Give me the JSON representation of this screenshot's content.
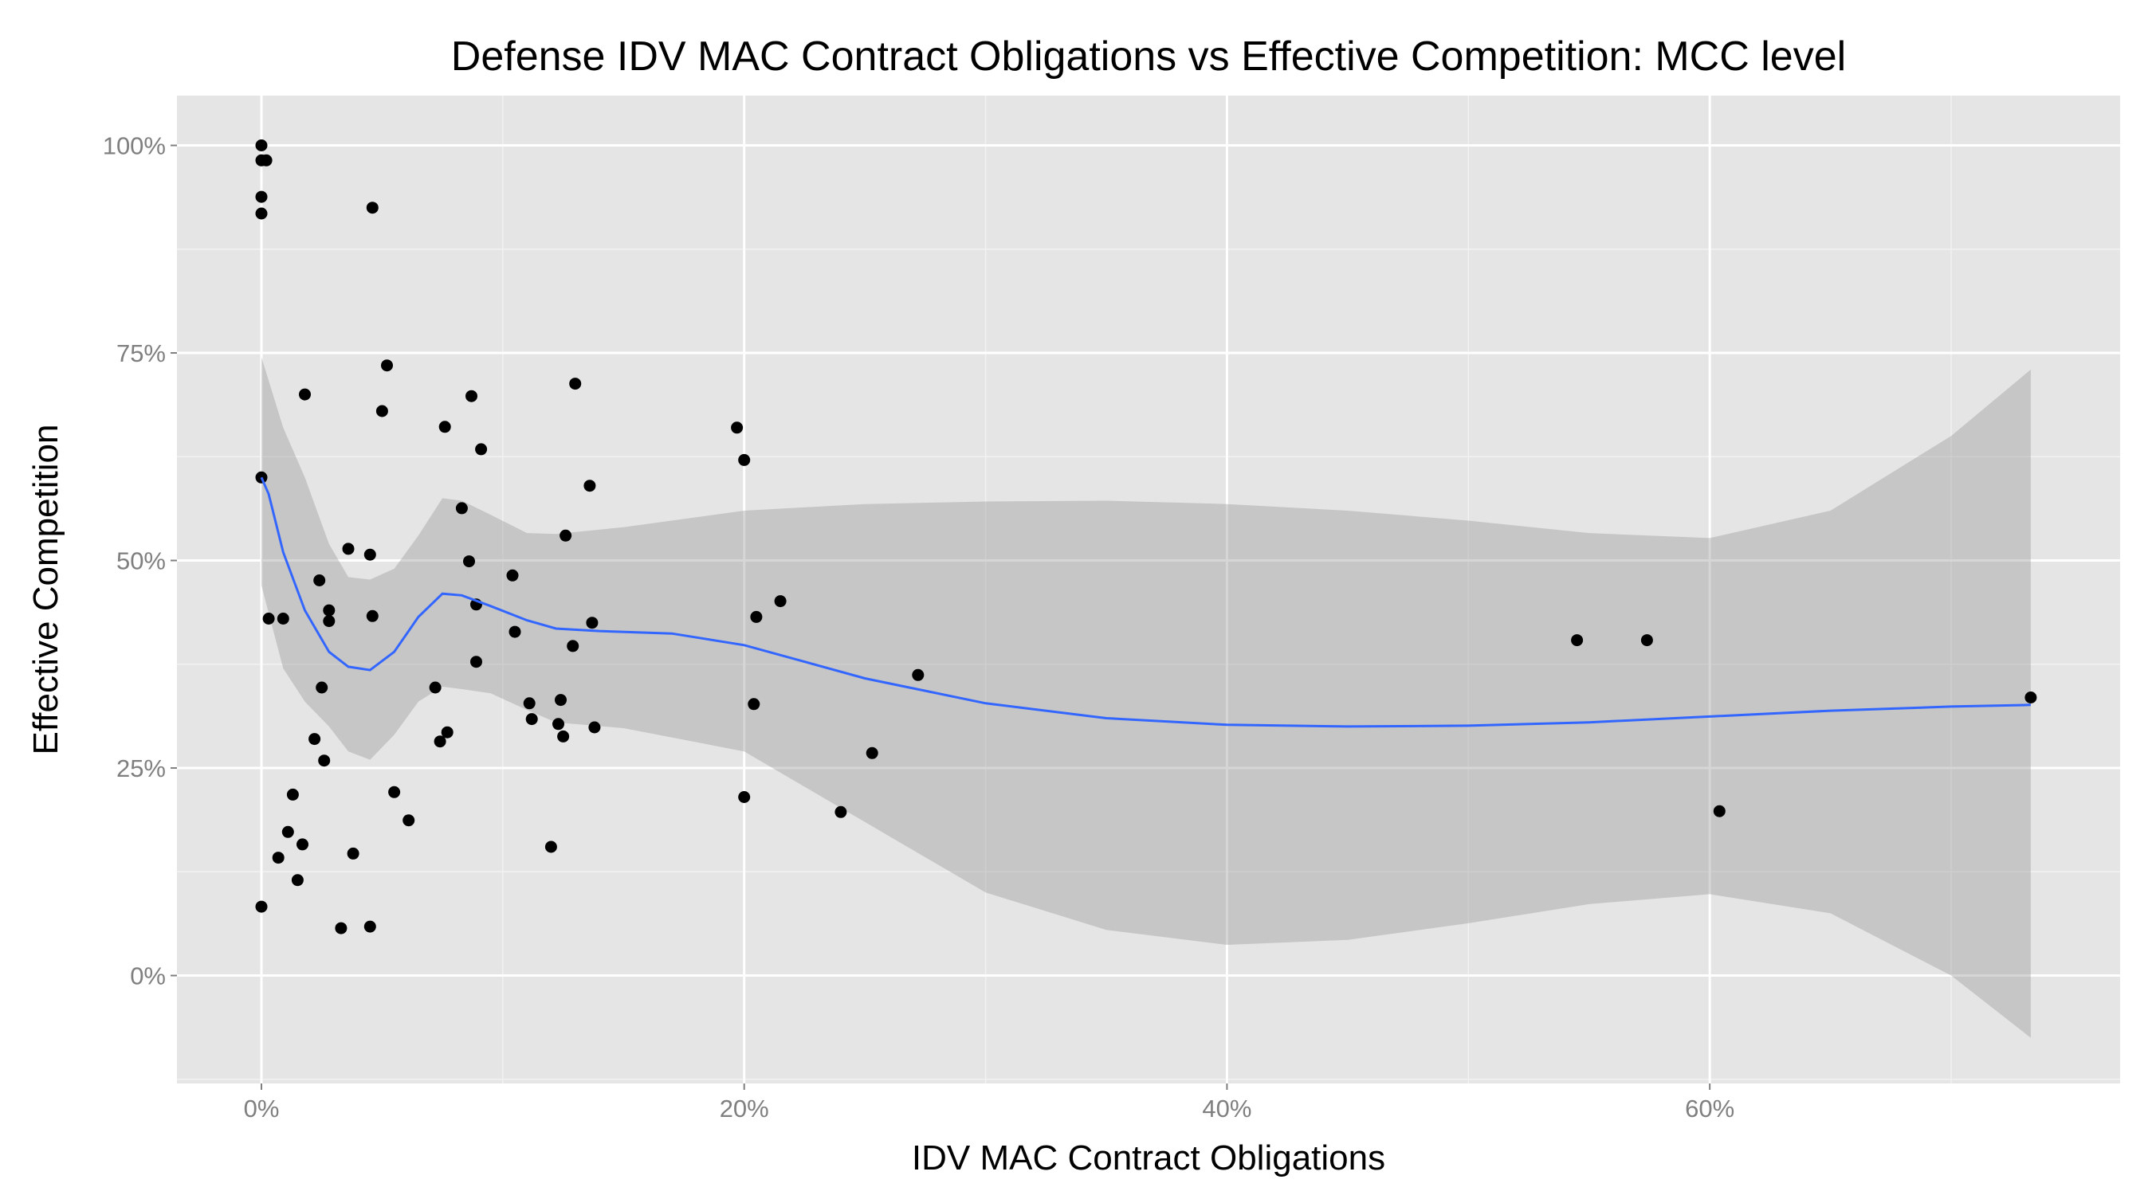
{
  "chart_data": {
    "type": "scatter",
    "title": "Defense IDV MAC Contract Obligations vs Effective Competition: MCC level",
    "xlabel": "IDV MAC Contract Obligations",
    "ylabel": "Effective Competition",
    "xlim": [
      -0.035,
      0.77
    ],
    "ylim": [
      -0.13,
      1.06
    ],
    "x_ticks": [
      0,
      0.2,
      0.4,
      0.6
    ],
    "x_tick_labels": [
      "0%",
      "20%",
      "40%",
      "60%"
    ],
    "y_ticks": [
      0,
      0.25,
      0.5,
      0.75,
      1.0
    ],
    "y_tick_labels": [
      "0%",
      "25%",
      "50%",
      "75%",
      "100%"
    ],
    "grid": true,
    "background": "#e5e5e5",
    "point_color": "#000000",
    "smooth_color": "#3366ff",
    "band_color": "#999999",
    "points": [
      [
        0.0,
        1.0
      ],
      [
        0.0,
        0.982
      ],
      [
        0.002,
        0.982
      ],
      [
        0.0,
        0.938
      ],
      [
        0.0,
        0.918
      ],
      [
        0.046,
        0.925
      ],
      [
        0.0,
        0.6
      ],
      [
        0.003,
        0.43
      ],
      [
        0.009,
        0.43
      ],
      [
        0.0,
        0.083
      ],
      [
        0.018,
        0.7
      ],
      [
        0.052,
        0.735
      ],
      [
        0.05,
        0.68
      ],
      [
        0.036,
        0.514
      ],
      [
        0.045,
        0.507
      ],
      [
        0.024,
        0.476
      ],
      [
        0.028,
        0.44
      ],
      [
        0.028,
        0.427
      ],
      [
        0.046,
        0.433
      ],
      [
        0.025,
        0.347
      ],
      [
        0.022,
        0.285
      ],
      [
        0.026,
        0.259
      ],
      [
        0.013,
        0.218
      ],
      [
        0.011,
        0.173
      ],
      [
        0.017,
        0.158
      ],
      [
        0.007,
        0.142
      ],
      [
        0.015,
        0.115
      ],
      [
        0.038,
        0.147
      ],
      [
        0.033,
        0.057
      ],
      [
        0.045,
        0.059
      ],
      [
        0.055,
        0.221
      ],
      [
        0.061,
        0.187
      ],
      [
        0.076,
        0.661
      ],
      [
        0.087,
        0.698
      ],
      [
        0.091,
        0.634
      ],
      [
        0.083,
        0.563
      ],
      [
        0.086,
        0.499
      ],
      [
        0.104,
        0.482
      ],
      [
        0.089,
        0.447
      ],
      [
        0.105,
        0.414
      ],
      [
        0.089,
        0.378
      ],
      [
        0.072,
        0.347
      ],
      [
        0.077,
        0.293
      ],
      [
        0.074,
        0.282
      ],
      [
        0.111,
        0.328
      ],
      [
        0.112,
        0.309
      ],
      [
        0.124,
        0.332
      ],
      [
        0.123,
        0.303
      ],
      [
        0.125,
        0.288
      ],
      [
        0.12,
        0.155
      ],
      [
        0.13,
        0.713
      ],
      [
        0.136,
        0.59
      ],
      [
        0.126,
        0.53
      ],
      [
        0.137,
        0.425
      ],
      [
        0.129,
        0.397
      ],
      [
        0.138,
        0.299
      ],
      [
        0.197,
        0.66
      ],
      [
        0.2,
        0.621
      ],
      [
        0.205,
        0.432
      ],
      [
        0.215,
        0.451
      ],
      [
        0.204,
        0.327
      ],
      [
        0.2,
        0.215
      ],
      [
        0.24,
        0.197
      ],
      [
        0.253,
        0.268
      ],
      [
        0.272,
        0.362
      ],
      [
        0.545,
        0.404
      ],
      [
        0.574,
        0.404
      ],
      [
        0.604,
        0.198
      ],
      [
        0.733,
        0.335
      ]
    ],
    "smooth_line": [
      [
        0.0,
        0.6
      ],
      [
        0.003,
        0.58
      ],
      [
        0.009,
        0.51
      ],
      [
        0.018,
        0.44
      ],
      [
        0.028,
        0.39
      ],
      [
        0.036,
        0.372
      ],
      [
        0.045,
        0.368
      ],
      [
        0.055,
        0.39
      ],
      [
        0.065,
        0.432
      ],
      [
        0.075,
        0.46
      ],
      [
        0.083,
        0.458
      ],
      [
        0.095,
        0.445
      ],
      [
        0.11,
        0.428
      ],
      [
        0.122,
        0.418
      ],
      [
        0.14,
        0.415
      ],
      [
        0.17,
        0.412
      ],
      [
        0.2,
        0.398
      ],
      [
        0.25,
        0.358
      ],
      [
        0.3,
        0.328
      ],
      [
        0.35,
        0.31
      ],
      [
        0.4,
        0.302
      ],
      [
        0.45,
        0.3
      ],
      [
        0.5,
        0.301
      ],
      [
        0.55,
        0.305
      ],
      [
        0.6,
        0.312
      ],
      [
        0.65,
        0.319
      ],
      [
        0.7,
        0.324
      ],
      [
        0.733,
        0.326
      ]
    ],
    "band_upper": [
      [
        0.0,
        0.745
      ],
      [
        0.009,
        0.66
      ],
      [
        0.018,
        0.6
      ],
      [
        0.028,
        0.52
      ],
      [
        0.036,
        0.48
      ],
      [
        0.045,
        0.477
      ],
      [
        0.055,
        0.49
      ],
      [
        0.065,
        0.53
      ],
      [
        0.075,
        0.575
      ],
      [
        0.083,
        0.572
      ],
      [
        0.095,
        0.555
      ],
      [
        0.11,
        0.533
      ],
      [
        0.122,
        0.532
      ],
      [
        0.15,
        0.54
      ],
      [
        0.2,
        0.56
      ],
      [
        0.25,
        0.568
      ],
      [
        0.3,
        0.571
      ],
      [
        0.35,
        0.572
      ],
      [
        0.4,
        0.568
      ],
      [
        0.45,
        0.56
      ],
      [
        0.5,
        0.548
      ],
      [
        0.55,
        0.533
      ],
      [
        0.6,
        0.527
      ],
      [
        0.65,
        0.56
      ],
      [
        0.7,
        0.65
      ],
      [
        0.733,
        0.73
      ]
    ],
    "band_lower": [
      [
        0.733,
        -0.075
      ],
      [
        0.7,
        0.0
      ],
      [
        0.65,
        0.075
      ],
      [
        0.6,
        0.098
      ],
      [
        0.55,
        0.086
      ],
      [
        0.5,
        0.063
      ],
      [
        0.45,
        0.043
      ],
      [
        0.4,
        0.037
      ],
      [
        0.35,
        0.055
      ],
      [
        0.3,
        0.1
      ],
      [
        0.25,
        0.185
      ],
      [
        0.2,
        0.27
      ],
      [
        0.15,
        0.298
      ],
      [
        0.122,
        0.305
      ],
      [
        0.11,
        0.32
      ],
      [
        0.095,
        0.34
      ],
      [
        0.083,
        0.345
      ],
      [
        0.075,
        0.348
      ],
      [
        0.065,
        0.33
      ],
      [
        0.055,
        0.29
      ],
      [
        0.045,
        0.26
      ],
      [
        0.036,
        0.27
      ],
      [
        0.028,
        0.3
      ],
      [
        0.018,
        0.33
      ],
      [
        0.009,
        0.37
      ],
      [
        0.0,
        0.47
      ]
    ]
  }
}
